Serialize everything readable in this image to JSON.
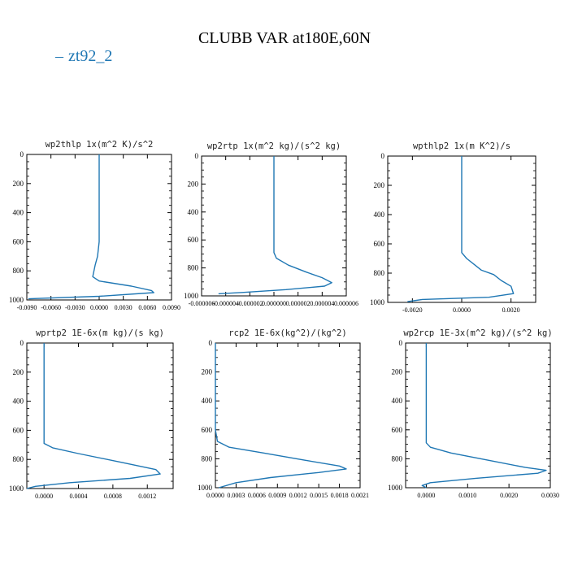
{
  "title": "CLUBB VAR at180E,60N",
  "legend": {
    "label": "zt92_2",
    "color": "#1f77b4"
  },
  "chart_data": [
    {
      "type": "line",
      "title": "wp2thlp   1x(m^2 K)/s^2",
      "xlim": [
        -0.009,
        0.009
      ],
      "ylim": [
        1000,
        0
      ],
      "xticks": [
        -0.009,
        -0.006,
        -0.003,
        0.0,
        0.003,
        0.006,
        0.009
      ],
      "xtick_labels": [
        "-0.0090",
        "-0.0060",
        "-0.0030",
        "0.0000",
        "0.0030",
        "0.0060",
        "0.0090"
      ],
      "yticks": [
        0,
        200,
        400,
        600,
        800,
        1000
      ],
      "ytick_labels": [
        "0",
        "200",
        "400",
        "600",
        "800",
        "1000"
      ],
      "series": [
        {
          "x": [
            0.0,
            0.0,
            0.0,
            0.0,
            0.0,
            0.0,
            0.0,
            -0.0002,
            -0.0005,
            -0.0008,
            0.0,
            0.004,
            0.0065,
            0.0068,
            0.0,
            -0.0088
          ],
          "y": [
            0,
            100,
            200,
            300,
            400,
            500,
            600,
            700,
            760,
            840,
            870,
            905,
            935,
            950,
            975,
            992
          ]
        }
      ]
    },
    {
      "type": "line",
      "title": "wp2rtp   1x(m^2 kg)/(s^2 kg)",
      "xlim": [
        -6e-06,
        6e-06
      ],
      "ylim": [
        1000,
        0
      ],
      "xticks": [
        -6e-06,
        -4e-06,
        -2e-06,
        0.0,
        2e-06,
        4e-06,
        6e-06
      ],
      "xtick_labels": [
        "-0.000006",
        "-0.000004",
        "-0.000002",
        "0.000000",
        "0.000002",
        "0.000004",
        "0.000006"
      ],
      "yticks": [
        0,
        200,
        400,
        600,
        800,
        1000
      ],
      "ytick_labels": [
        "0",
        "200",
        "400",
        "600",
        "800",
        "1000"
      ],
      "series": [
        {
          "x": [
            0.0,
            0.0,
            0.0,
            0.0,
            0.0,
            0.0,
            0.0,
            0.0,
            2e-07,
            1.2e-06,
            2.7e-06,
            4e-06,
            4.8e-06,
            4.2e-06,
            1e-06,
            -2.5e-06,
            -4.6e-06
          ],
          "y": [
            0,
            100,
            200,
            300,
            400,
            500,
            600,
            690,
            730,
            780,
            830,
            870,
            905,
            930,
            955,
            975,
            985
          ]
        }
      ]
    },
    {
      "type": "line",
      "title": "wpthlp2   1x(m K^2)/s",
      "xlim": [
        -0.003,
        0.003
      ],
      "ylim": [
        1000,
        0
      ],
      "xticks": [
        -0.002,
        0.0,
        0.002
      ],
      "xtick_labels": [
        "-0.0020",
        "0.0000",
        "0.0020"
      ],
      "yticks": [
        0,
        200,
        400,
        600,
        800,
        1000
      ],
      "ytick_labels": [
        "0",
        "200",
        "400",
        "600",
        "800",
        "1000"
      ],
      "series": [
        {
          "x": [
            0.0,
            0.0,
            0.0,
            0.0,
            0.0,
            0.0,
            0.0,
            0.0,
            0.0002,
            0.0005,
            0.0008,
            0.0013,
            0.0016,
            0.002,
            0.0021,
            0.0011,
            -0.0016,
            -0.0022
          ],
          "y": [
            0,
            100,
            200,
            300,
            400,
            500,
            600,
            660,
            700,
            740,
            780,
            810,
            850,
            890,
            940,
            965,
            980,
            995
          ]
        }
      ]
    },
    {
      "type": "line",
      "title": "wprtp2   1E-6x(m kg)/(s kg)",
      "xlim": [
        -0.0002,
        0.0015
      ],
      "ylim": [
        1000,
        0
      ],
      "xticks": [
        0.0,
        0.0004,
        0.0008,
        0.0012
      ],
      "xtick_labels": [
        "0.0000",
        "0.0004",
        "0.0008",
        "0.0012"
      ],
      "yticks": [
        0,
        200,
        400,
        600,
        800,
        1000
      ],
      "ytick_labels": [
        "0",
        "200",
        "400",
        "600",
        "800",
        "1000"
      ],
      "series": [
        {
          "x": [
            0.0,
            0.0,
            0.0,
            0.0,
            0.0,
            0.0,
            0.0,
            0.0,
            0.0001,
            0.0004,
            0.0009,
            0.0013,
            0.00135,
            0.001,
            0.0003,
            -0.0001,
            -0.0002
          ],
          "y": [
            0,
            100,
            200,
            300,
            400,
            500,
            600,
            690,
            720,
            760,
            820,
            870,
            900,
            930,
            960,
            985,
            1000
          ]
        }
      ]
    },
    {
      "type": "line",
      "title": "rcp2   1E-6x(kg^2)/(kg^2)",
      "xlim": [
        0.0,
        0.0021
      ],
      "ylim": [
        1000,
        0
      ],
      "xticks": [
        0.0,
        0.0003,
        0.0006,
        0.0009,
        0.0012,
        0.0015,
        0.0018,
        0.0021
      ],
      "xtick_labels": [
        "0.0000",
        "0.0003",
        "0.0006",
        "0.0009",
        "0.0012",
        "0.0015",
        "0.0018",
        "0.0021"
      ],
      "yticks": [
        0,
        200,
        400,
        600,
        800,
        1000
      ],
      "ytick_labels": [
        "0",
        "200",
        "400",
        "600",
        "800",
        "1000"
      ],
      "series": [
        {
          "x": [
            0.0,
            0.0,
            0.0,
            0.0,
            0.0,
            0.0,
            0.0,
            3e-05,
            0.0002,
            0.0007,
            0.0013,
            0.0018,
            0.0019,
            0.0015,
            0.0008,
            0.0003,
            5e-05
          ],
          "y": [
            0,
            100,
            200,
            300,
            400,
            500,
            600,
            680,
            720,
            760,
            810,
            850,
            870,
            895,
            930,
            965,
            1000
          ]
        }
      ]
    },
    {
      "type": "line",
      "title": "wp2rcp   1E-3x(m^2 kg)/(s^2 kg)",
      "xlim": [
        -0.0005,
        0.003
      ],
      "ylim": [
        1000,
        0
      ],
      "xticks": [
        0.0,
        0.001,
        0.002,
        0.003
      ],
      "xtick_labels": [
        "0.0000",
        "0.0010",
        "0.0020",
        "0.0030"
      ],
      "yticks": [
        0,
        200,
        400,
        600,
        800,
        1000
      ],
      "ytick_labels": [
        "0",
        "200",
        "400",
        "600",
        "800",
        "1000"
      ],
      "series": [
        {
          "x": [
            0.0,
            0.0,
            0.0,
            0.0,
            0.0,
            0.0,
            0.0,
            0.0,
            0.0001,
            0.0006,
            0.0015,
            0.0024,
            0.0029,
            0.0027,
            0.0012,
            0.0001,
            -0.0001,
            0.0
          ],
          "y": [
            0,
            100,
            200,
            300,
            400,
            500,
            600,
            690,
            720,
            760,
            810,
            860,
            880,
            900,
            935,
            965,
            985,
            1000
          ]
        }
      ]
    }
  ]
}
